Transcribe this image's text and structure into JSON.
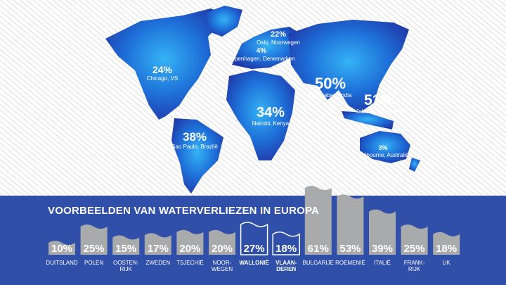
{
  "map": {
    "callouts": [
      {
        "value": "22%",
        "place": "Oslo, Noorwegen"
      },
      {
        "value": "4%",
        "place": "Kopenhagen, Denemarken"
      },
      {
        "value": "24%",
        "place": "Chicago, VS"
      },
      {
        "value": "50%",
        "place": "Hyderabad, India"
      },
      {
        "value": "51%",
        "place": "Jakarta, Indonesië"
      },
      {
        "value": "34%",
        "place": "Nairobi, Kenya"
      },
      {
        "value": "38%",
        "place": "Sao Paulo, Brazilë"
      },
      {
        "value": "3%",
        "place": "Melbourne, Australië"
      }
    ]
  },
  "colors": {
    "panel": "#2f4fa8",
    "continent": "#1f5fd0",
    "continent_light": "#2fa0f0",
    "bar": "#a9aaac",
    "bar_outline": "#ffffff",
    "bar_label": "#ffffff",
    "category_label": "#ffffff"
  },
  "chart_data": {
    "type": "bar",
    "title": "VOORBEELDEN VAN WATERVERLIEZEN IN EUROPA",
    "categories": [
      "DUITSLAND",
      "POLEN",
      "OOSTEN-RIJK",
      "ZWEDEN",
      "TSJECHIË",
      "NOOR-WEGEN",
      "WALLONIË",
      "VLAAN-DEREN",
      "BULGARIJE",
      "ROEMENIË",
      "ITALIË",
      "FRANK-RIJK",
      "UK"
    ],
    "values": [
      10,
      25,
      15,
      17,
      20,
      20,
      27,
      18,
      61,
      53,
      39,
      25,
      18
    ],
    "labels": [
      "10%",
      "25%",
      "15%",
      "17%",
      "20%",
      "20%",
      "27%",
      "18%",
      "61%",
      "53%",
      "39%",
      "25%",
      "18%"
    ],
    "highlighted": [
      "WALLONIË",
      "VLAAN-DEREN"
    ],
    "unit": "%",
    "ylim": [
      0,
      61
    ],
    "grid": false,
    "legend": "none"
  }
}
